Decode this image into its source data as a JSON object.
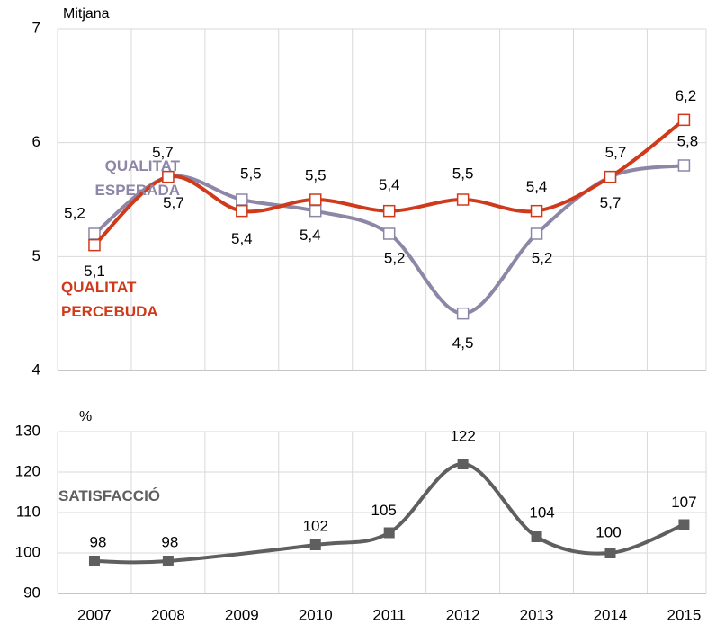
{
  "chart_data": [
    {
      "type": "line",
      "ylabel": "Mitjana",
      "x": [
        2007,
        2008,
        2009,
        2010,
        2011,
        2012,
        2013,
        2014,
        2015
      ],
      "xlim": [
        2006.5,
        2015.3
      ],
      "ylim": [
        4,
        7
      ],
      "yticks": [
        4,
        5,
        6,
        7
      ],
      "grid": true,
      "marker": "open-square",
      "series": [
        {
          "name": "QUALITAT ESPERADA",
          "color": "#8e86a6",
          "values": [
            5.2,
            5.7,
            5.5,
            5.4,
            5.2,
            4.5,
            5.2,
            5.7,
            5.8
          ],
          "value_labels": [
            "5,2",
            "5,7",
            "5,5",
            "5,4",
            "5,2",
            "4,5",
            "5,2",
            "5,7",
            "5,8"
          ]
        },
        {
          "name": "QUALITAT PERCEBUDA",
          "color": "#d03a1a",
          "values": [
            5.1,
            5.7,
            5.4,
            5.5,
            5.4,
            5.5,
            5.4,
            5.7,
            6.2
          ],
          "value_labels": [
            "5,1",
            "5,7",
            "5,4",
            "5,5",
            "5,4",
            "5,5",
            "5,4",
            "5,7",
            "6,2"
          ]
        }
      ]
    },
    {
      "type": "line",
      "ylabel": "%",
      "x": [
        2007,
        2008,
        2010,
        2011,
        2012,
        2013,
        2014,
        2015
      ],
      "xlim": [
        2006.5,
        2015.3
      ],
      "xticks": [
        2007,
        2008,
        2009,
        2010,
        2011,
        2012,
        2013,
        2014,
        2015
      ],
      "ylim": [
        90,
        130
      ],
      "yticks": [
        90,
        100,
        110,
        120,
        130
      ],
      "grid": true,
      "marker": "filled-square",
      "series": [
        {
          "name": "SATISFACCIÓ",
          "color": "#5f5f5f",
          "values": [
            98,
            98,
            102,
            105,
            122,
            104,
            100,
            107
          ]
        }
      ]
    }
  ]
}
